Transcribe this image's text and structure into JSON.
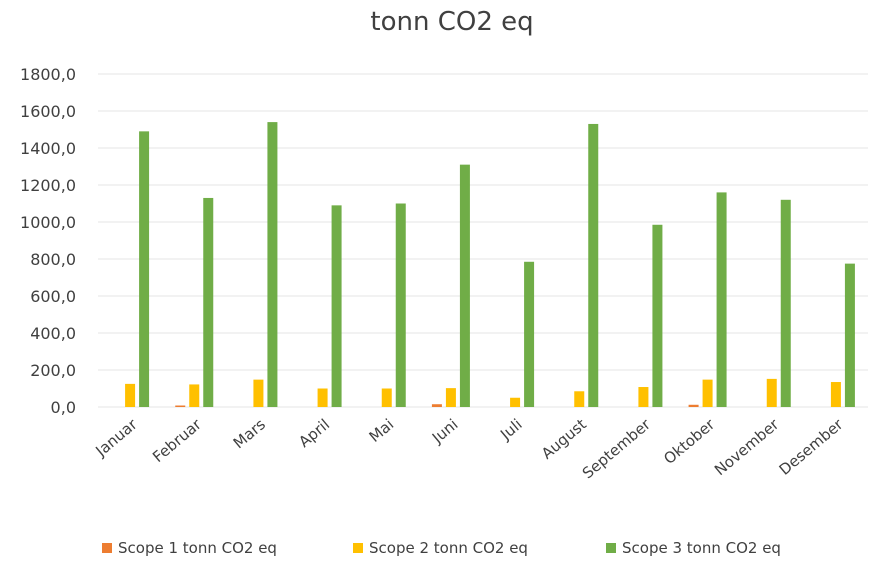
{
  "chart_data": {
    "type": "bar",
    "title": "tonn CO2 eq",
    "categories": [
      "Januar",
      "Februar",
      "Mars",
      "April",
      "Mai",
      "Juni",
      "Juli",
      "August",
      "September",
      "Oktober",
      "November",
      "Desember"
    ],
    "series": [
      {
        "name": "Scope 1 tonn CO2 eq",
        "color": "#ED7D31",
        "values": [
          0,
          8,
          0,
          0,
          0,
          15,
          0,
          0,
          0,
          12,
          0,
          0
        ]
      },
      {
        "name": "Scope 2 tonn CO2 eq",
        "color": "#FFC000",
        "values": [
          125,
          122,
          148,
          100,
          100,
          102,
          50,
          85,
          108,
          148,
          152,
          135
        ]
      },
      {
        "name": "Scope 3 tonn CO2 eq",
        "color": "#70AD47",
        "values": [
          1490,
          1130,
          1540,
          1090,
          1100,
          1310,
          785,
          1530,
          985,
          1160,
          1120,
          775
        ]
      }
    ],
    "yticks": [
      "0,0",
      "200,0",
      "400,0",
      "600,0",
      "800,0",
      "1000,0",
      "1200,0",
      "1400,0",
      "1600,0",
      "1800,0"
    ],
    "ylim": [
      0,
      1800
    ],
    "grid": true,
    "legend_position": "bottom"
  }
}
